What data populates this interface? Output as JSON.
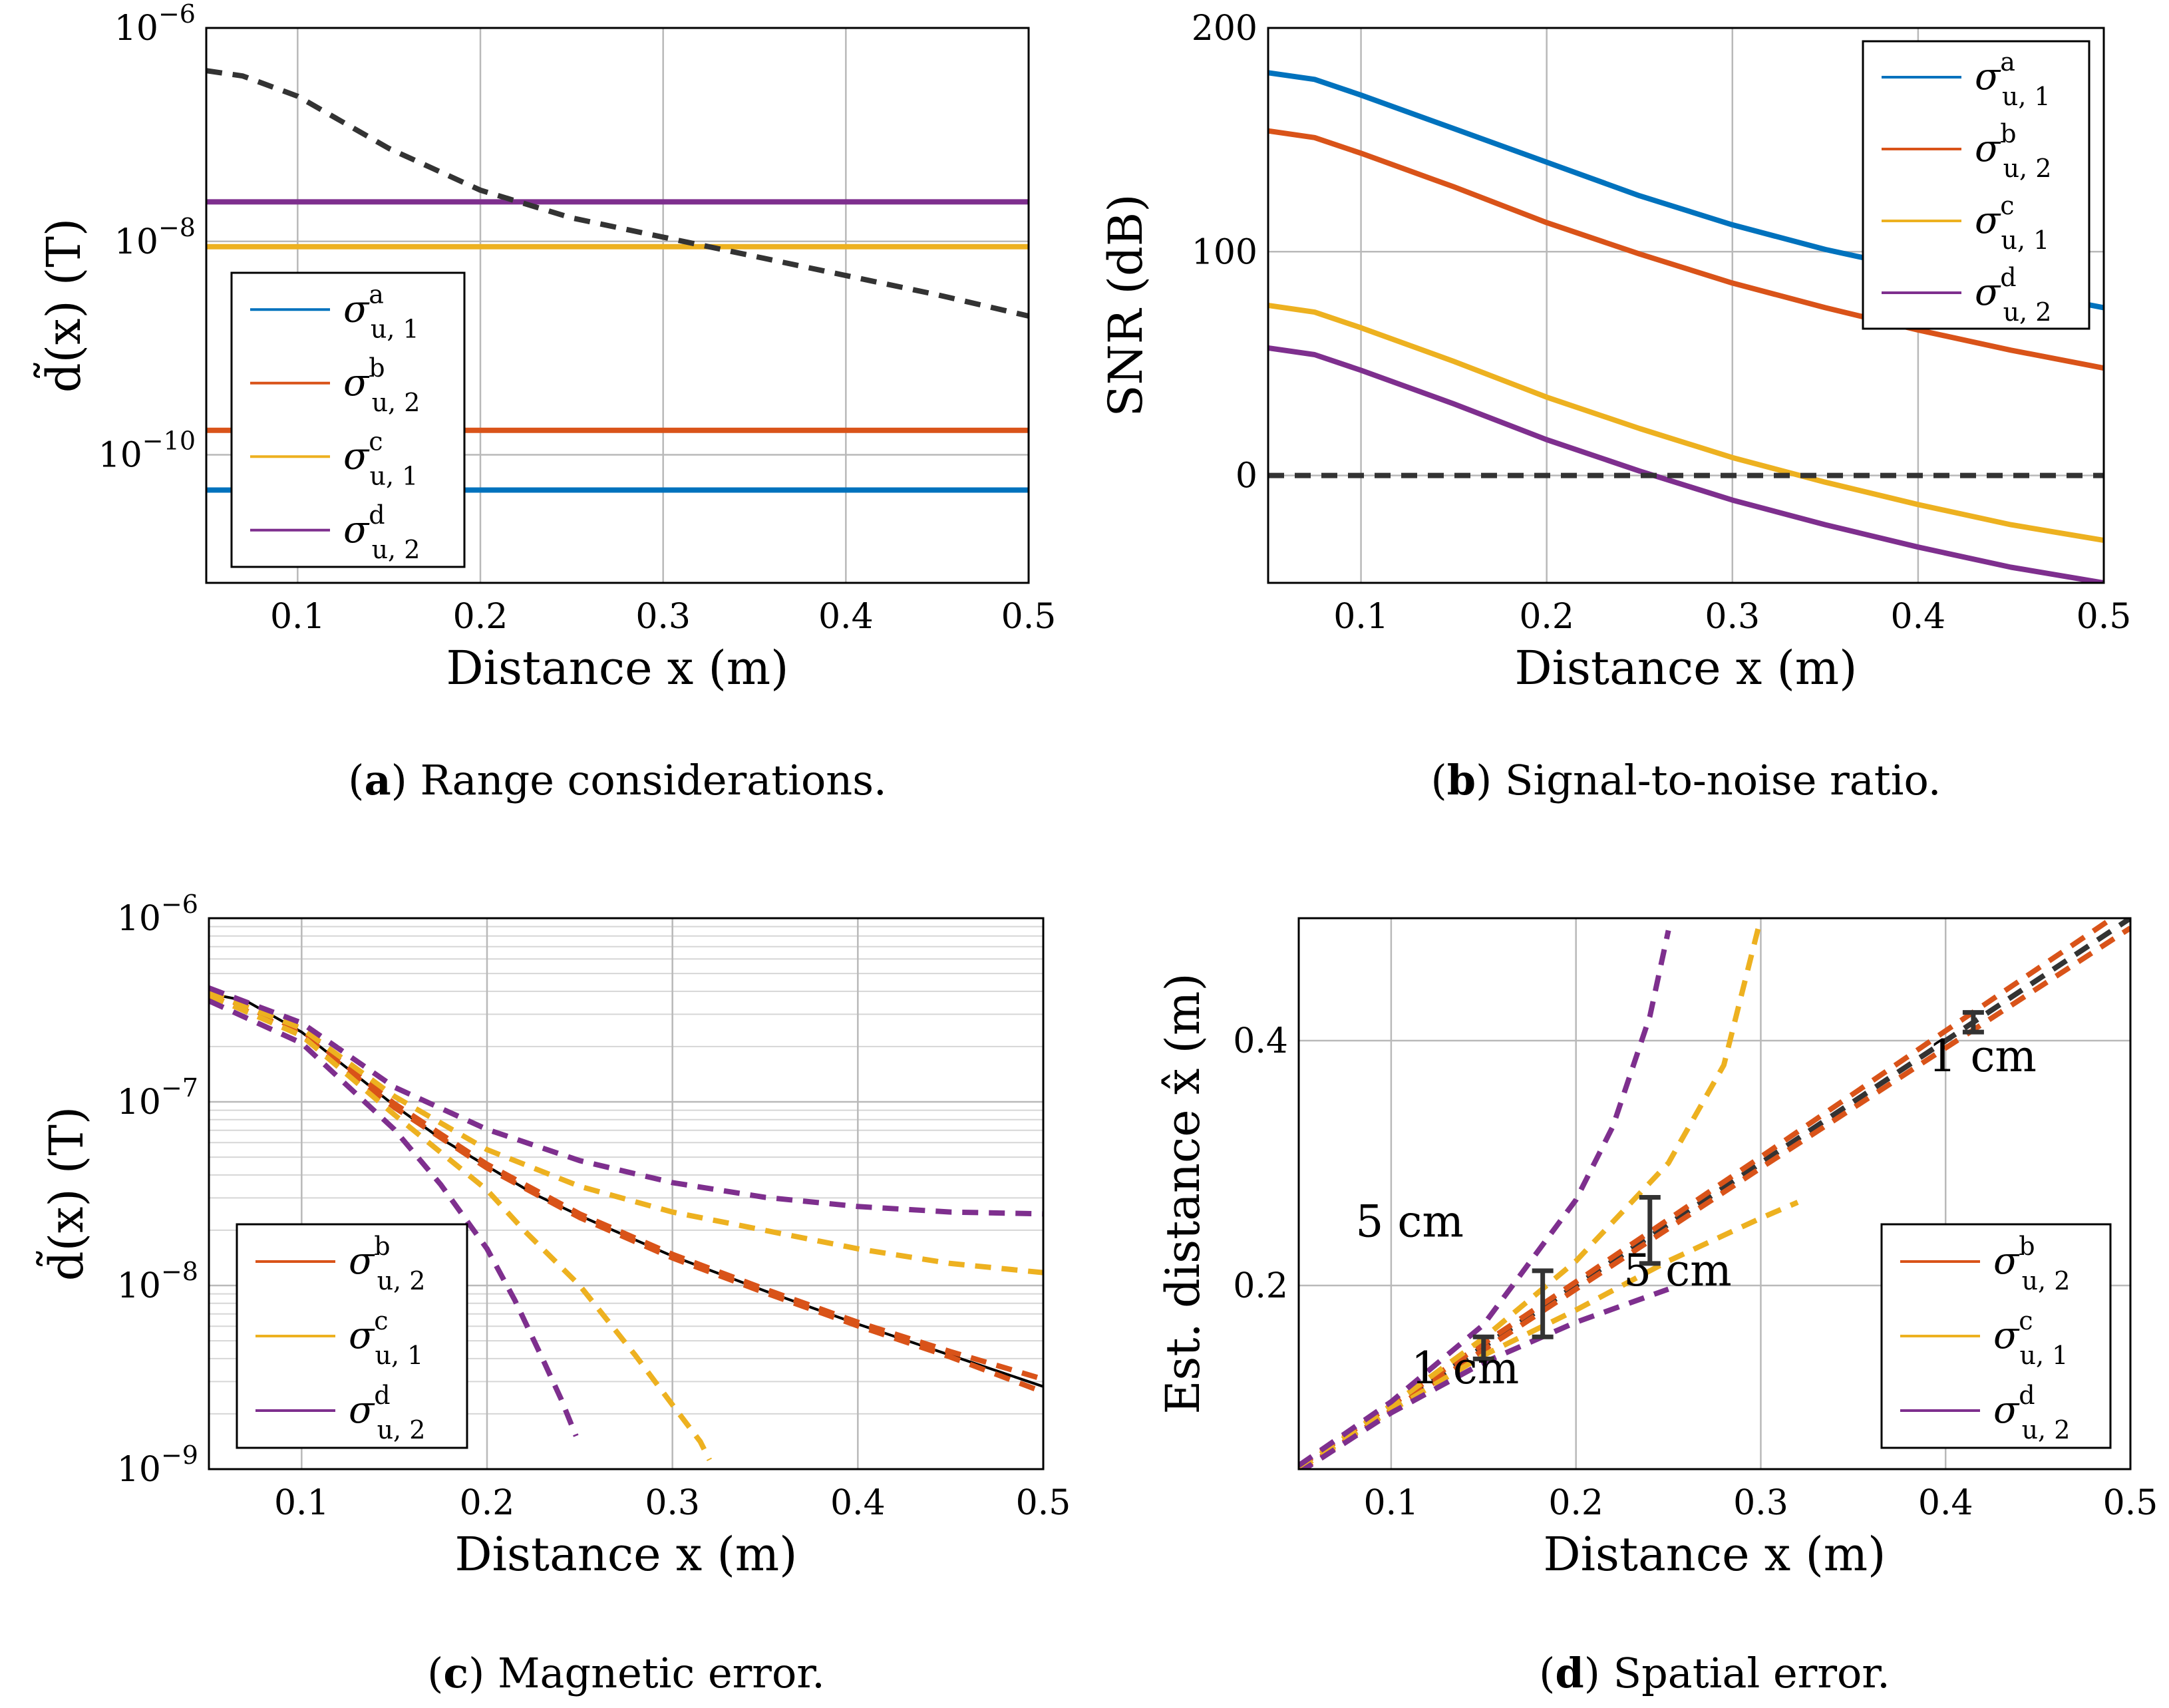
{
  "colors": {
    "a": "#0072BD",
    "b": "#D95319",
    "c": "#EDB120",
    "d": "#7E2F8E",
    "ref": "#333333",
    "grid": "#b9b9b9",
    "grid_minor": "#d6d6d6",
    "true_curve": "#000000"
  },
  "chart_data": [
    {
      "id": "a",
      "type": "line",
      "yscale": "log",
      "xlabel": "Distance x (m)",
      "ylabel": "d̃(x) (T)",
      "xlim": [
        0.05,
        0.5
      ],
      "ylim_exp": [
        -11.2,
        -6
      ],
      "xticks": [
        0.1,
        0.2,
        0.3,
        0.4,
        0.5
      ],
      "xtick_labels": [
        "0.1",
        "0.2",
        "0.3",
        "0.4",
        "0.5"
      ],
      "yticks_exp": [
        -10,
        -8,
        -6
      ],
      "ytick_labels": [
        "10",
        "10",
        "10"
      ],
      "ytick_sups": [
        "−10",
        "−8",
        "−6"
      ],
      "caption_letter": "a",
      "caption_text": " Range considerations.",
      "legend": {
        "position": "left-middle",
        "entries": [
          {
            "key": "a",
            "sym": "σ",
            "sup": "a",
            "sub": "u, 1"
          },
          {
            "key": "b",
            "sym": "σ",
            "sup": "b",
            "sub": "u, 2"
          },
          {
            "key": "c",
            "sym": "σ",
            "sup": "c",
            "sub": "u, 1"
          },
          {
            "key": "d",
            "sym": "σ",
            "sup": "d",
            "sub": "u, 2"
          }
        ]
      },
      "series": [
        {
          "key": "a",
          "name": "σ^a_u,1",
          "dashed": false,
          "x": [
            0.05,
            0.5
          ],
          "y_exp": [
            -10.33,
            -10.33
          ]
        },
        {
          "key": "b",
          "name": "σ^b_u,2",
          "dashed": false,
          "x": [
            0.05,
            0.5
          ],
          "y_exp": [
            -9.77,
            -9.77
          ]
        },
        {
          "key": "c",
          "name": "σ^c_u,1",
          "dashed": false,
          "x": [
            0.05,
            0.5
          ],
          "y_exp": [
            -8.05,
            -8.05
          ]
        },
        {
          "key": "d",
          "name": "σ^d_u,2",
          "dashed": false,
          "x": [
            0.05,
            0.5
          ],
          "y_exp": [
            -7.63,
            -7.63
          ]
        },
        {
          "key": "ref",
          "name": "d̃(x)",
          "dashed": true,
          "x": [
            0.05,
            0.07,
            0.1,
            0.15,
            0.2,
            0.25,
            0.3,
            0.35,
            0.4,
            0.45,
            0.5
          ],
          "y_exp": [
            -6.4,
            -6.45,
            -6.64,
            -7.13,
            -7.52,
            -7.78,
            -7.96,
            -8.14,
            -8.32,
            -8.5,
            -8.7
          ]
        }
      ]
    },
    {
      "id": "b",
      "type": "line",
      "yscale": "linear",
      "xlabel": "Distance x (m)",
      "ylabel": "SNR (dB)",
      "xlim": [
        0.05,
        0.5
      ],
      "ylim": [
        -48,
        200
      ],
      "xticks": [
        0.1,
        0.2,
        0.3,
        0.4,
        0.5
      ],
      "xtick_labels": [
        "0.1",
        "0.2",
        "0.3",
        "0.4",
        "0.5"
      ],
      "yticks": [
        0,
        100,
        200
      ],
      "ytick_labels": [
        "0",
        "100",
        "200"
      ],
      "caption_letter": "b",
      "caption_text": " Signal-to-noise ratio.",
      "legend": {
        "position": "top-right",
        "entries": [
          {
            "key": "a",
            "sym": "σ",
            "sup": "a",
            "sub": "u, 1"
          },
          {
            "key": "b",
            "sym": "σ",
            "sup": "b",
            "sub": "u, 2"
          },
          {
            "key": "c",
            "sym": "σ",
            "sup": "c",
            "sub": "u, 1"
          },
          {
            "key": "d",
            "sym": "σ",
            "sup": "d",
            "sub": "u, 2"
          }
        ]
      },
      "series": [
        {
          "key": "a",
          "name": "σ^a_u,1",
          "dashed": false,
          "x": [
            0.05,
            0.075,
            0.1,
            0.15,
            0.2,
            0.25,
            0.3,
            0.35,
            0.4,
            0.45,
            0.5
          ],
          "y": [
            180,
            177,
            170,
            155,
            140,
            125,
            112,
            101,
            92,
            83,
            75
          ]
        },
        {
          "key": "b",
          "name": "σ^b_u,2",
          "dashed": false,
          "x": [
            0.05,
            0.075,
            0.1,
            0.15,
            0.2,
            0.25,
            0.3,
            0.35,
            0.4,
            0.45,
            0.5
          ],
          "y": [
            154,
            151,
            144,
            129,
            113,
            99,
            86,
            75,
            65,
            56,
            48
          ]
        },
        {
          "key": "c",
          "name": "σ^c_u,1",
          "dashed": false,
          "x": [
            0.05,
            0.075,
            0.1,
            0.15,
            0.2,
            0.25,
            0.3,
            0.35,
            0.4,
            0.45,
            0.5
          ],
          "y": [
            76,
            73,
            66,
            51,
            35,
            21,
            8,
            -3,
            -13,
            -22,
            -29
          ]
        },
        {
          "key": "d",
          "name": "σ^d_u,2",
          "dashed": false,
          "x": [
            0.05,
            0.075,
            0.1,
            0.15,
            0.2,
            0.25,
            0.3,
            0.35,
            0.4,
            0.45,
            0.5
          ],
          "y": [
            57,
            54,
            47,
            32,
            16,
            2,
            -11,
            -22,
            -32,
            -41,
            -48
          ]
        },
        {
          "key": "ref",
          "name": "0 dB",
          "dashed": true,
          "x": [
            0.05,
            0.5
          ],
          "y": [
            0,
            0
          ]
        }
      ]
    },
    {
      "id": "c",
      "type": "line",
      "yscale": "log",
      "xlabel": "Distance x (m)",
      "ylabel": "d̃(x) (T)",
      "xlim": [
        0.05,
        0.5
      ],
      "ylim_exp": [
        -9,
        -6
      ],
      "minor_grid": true,
      "xticks": [
        0.1,
        0.2,
        0.3,
        0.4,
        0.5
      ],
      "xtick_labels": [
        "0.1",
        "0.2",
        "0.3",
        "0.4",
        "0.5"
      ],
      "yticks_exp": [
        -9,
        -8,
        -7,
        -6
      ],
      "ytick_labels": [
        "10",
        "10",
        "10",
        "10"
      ],
      "ytick_sups": [
        "−9",
        "−8",
        "−7",
        "−6"
      ],
      "caption_letter": "c",
      "caption_text": " Magnetic error.",
      "legend": {
        "position": "bottom-left",
        "entries": [
          {
            "key": "b",
            "sym": "σ",
            "sup": "b",
            "sub": "u, 2"
          },
          {
            "key": "c",
            "sym": "σ",
            "sup": "c",
            "sub": "u, 1"
          },
          {
            "key": "d",
            "sym": "σ",
            "sup": "d",
            "sub": "u, 2"
          }
        ]
      },
      "series": [
        {
          "key": "true_curve",
          "name": "d̃(x)",
          "dashed": false,
          "thin": true,
          "x": [
            0.05,
            0.07,
            0.1,
            0.125,
            0.15,
            0.175,
            0.2,
            0.225,
            0.25,
            0.3,
            0.35,
            0.4,
            0.45,
            0.5
          ],
          "y_exp": [
            -6.41,
            -6.45,
            -6.62,
            -6.82,
            -7.02,
            -7.2,
            -7.35,
            -7.5,
            -7.62,
            -7.84,
            -8.03,
            -8.21,
            -8.38,
            -8.55
          ]
        },
        {
          "key": "b",
          "name": "σ^b_u,2 upper",
          "dashed": true,
          "x": [
            0.05,
            0.1,
            0.15,
            0.2,
            0.25,
            0.3,
            0.35,
            0.4,
            0.45,
            0.5
          ],
          "y_exp": [
            -6.4,
            -6.61,
            -7.01,
            -7.34,
            -7.61,
            -7.83,
            -8.02,
            -8.2,
            -8.36,
            -8.51
          ]
        },
        {
          "key": "b",
          "name": "σ^b_u,2 lower",
          "dashed": true,
          "x": [
            0.05,
            0.1,
            0.15,
            0.2,
            0.25,
            0.3,
            0.35,
            0.4,
            0.45,
            0.5
          ],
          "y_exp": [
            -6.42,
            -6.63,
            -7.03,
            -7.36,
            -7.63,
            -7.85,
            -8.04,
            -8.22,
            -8.39,
            -8.58
          ]
        },
        {
          "key": "c",
          "name": "σ^c_u,1 upper",
          "dashed": true,
          "x": [
            0.05,
            0.1,
            0.15,
            0.2,
            0.25,
            0.3,
            0.35,
            0.4,
            0.45,
            0.5
          ],
          "y_exp": [
            -6.4,
            -6.6,
            -6.97,
            -7.26,
            -7.46,
            -7.6,
            -7.7,
            -7.8,
            -7.88,
            -7.93
          ]
        },
        {
          "key": "c",
          "name": "σ^c_u,1 lower",
          "dashed": true,
          "x": [
            0.05,
            0.1,
            0.15,
            0.2,
            0.22,
            0.25,
            0.28,
            0.3,
            0.315,
            0.32
          ],
          "y_exp": [
            -6.42,
            -6.64,
            -7.07,
            -7.48,
            -7.7,
            -8.0,
            -8.38,
            -8.65,
            -8.85,
            -8.95
          ]
        },
        {
          "key": "d",
          "name": "σ^d_u,2 upper",
          "dashed": true,
          "x": [
            0.05,
            0.1,
            0.15,
            0.2,
            0.25,
            0.3,
            0.35,
            0.4,
            0.45,
            0.5
          ],
          "y_exp": [
            -6.38,
            -6.57,
            -6.92,
            -7.15,
            -7.32,
            -7.44,
            -7.52,
            -7.57,
            -7.6,
            -7.61
          ]
        },
        {
          "key": "d",
          "name": "σ^d_u,2 lower",
          "dashed": true,
          "x": [
            0.05,
            0.1,
            0.15,
            0.175,
            0.2,
            0.215,
            0.23,
            0.24,
            0.248
          ],
          "y_exp": [
            -6.45,
            -6.68,
            -7.15,
            -7.45,
            -7.8,
            -8.08,
            -8.4,
            -8.62,
            -8.82
          ]
        }
      ]
    },
    {
      "id": "d",
      "type": "line",
      "yscale": "linear",
      "xlabel": "Distance x (m)",
      "ylabel": "Est. distance x̂ (m)",
      "xlim": [
        0.05,
        0.5
      ],
      "ylim": [
        0.05,
        0.5
      ],
      "xticks": [
        0.1,
        0.2,
        0.3,
        0.4,
        0.5
      ],
      "xtick_labels": [
        "0.1",
        "0.2",
        "0.3",
        "0.4",
        "0.5"
      ],
      "yticks": [
        0.2,
        0.4
      ],
      "ytick_labels": [
        "0.2",
        "0.4"
      ],
      "caption_letter": "d",
      "caption_text": " Spatial error.",
      "legend": {
        "position": "bottom-right",
        "entries": [
          {
            "key": "b",
            "sym": "σ",
            "sup": "b",
            "sub": "u, 2"
          },
          {
            "key": "c",
            "sym": "σ",
            "sup": "c",
            "sub": "u, 1"
          },
          {
            "key": "d",
            "sym": "σ",
            "sup": "d",
            "sub": "u, 2"
          }
        ]
      },
      "series": [
        {
          "key": "ref",
          "name": "ideal x̂ = x",
          "dashed": true,
          "x": [
            0.05,
            0.5
          ],
          "y": [
            0.05,
            0.5
          ]
        },
        {
          "key": "b",
          "name": "σ^b_u,2 upper",
          "dashed": true,
          "x": [
            0.05,
            0.2,
            0.3,
            0.4,
            0.5
          ],
          "y": [
            0.048,
            0.197,
            0.296,
            0.394,
            0.492
          ]
        },
        {
          "key": "b",
          "name": "σ^b_u,2 lower",
          "dashed": true,
          "x": [
            0.05,
            0.2,
            0.3,
            0.4,
            0.5
          ],
          "y": [
            0.052,
            0.203,
            0.305,
            0.408,
            0.51
          ]
        },
        {
          "key": "c",
          "name": "σ^c_u,1 upper",
          "dashed": true,
          "x": [
            0.05,
            0.1,
            0.15,
            0.2,
            0.25,
            0.28,
            0.3
          ],
          "y": [
            0.05,
            0.102,
            0.157,
            0.22,
            0.3,
            0.38,
            0.5
          ]
        },
        {
          "key": "c",
          "name": "σ^c_u,1 lower",
          "dashed": true,
          "x": [
            0.05,
            0.1,
            0.15,
            0.2,
            0.25,
            0.3,
            0.32
          ],
          "y": [
            0.05,
            0.098,
            0.143,
            0.18,
            0.22,
            0.255,
            0.268
          ]
        },
        {
          "key": "d",
          "name": "σ^d_u,2 upper",
          "dashed": true,
          "x": [
            0.05,
            0.1,
            0.15,
            0.2,
            0.22,
            0.24,
            0.25
          ],
          "y": [
            0.053,
            0.105,
            0.168,
            0.27,
            0.33,
            0.42,
            0.49
          ]
        },
        {
          "key": "d",
          "name": "σ^d_u,2 lower",
          "dashed": true,
          "x": [
            0.05,
            0.1,
            0.15,
            0.2,
            0.25
          ],
          "y": [
            0.047,
            0.096,
            0.137,
            0.17,
            0.197
          ]
        }
      ],
      "error_bars": [
        {
          "x": 0.15,
          "y_low": 0.14,
          "y_high": 0.158
        },
        {
          "x": 0.182,
          "y_low": 0.158,
          "y_high": 0.212
        },
        {
          "x": 0.24,
          "y_low": 0.218,
          "y_high": 0.272
        },
        {
          "x": 0.415,
          "y_low": 0.407,
          "y_high": 0.423
        }
      ],
      "annotations": [
        {
          "text": "5 cm",
          "at_x": 0.11,
          "at_y": 0.24
        },
        {
          "text": "1 cm",
          "at_x": 0.14,
          "at_y": 0.12
        },
        {
          "text": "5 cm",
          "at_x": 0.255,
          "at_y": 0.2
        },
        {
          "text": "1 cm",
          "at_x": 0.42,
          "at_y": 0.375
        }
      ]
    }
  ]
}
